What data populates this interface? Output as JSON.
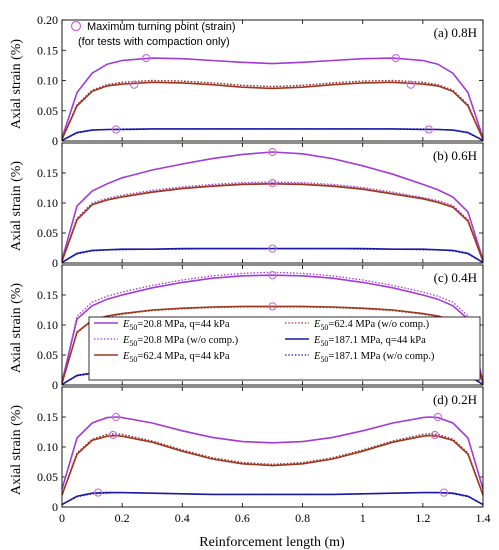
{
  "chart_data": {
    "type": "line",
    "xlabel": "Reinforcement length (m)",
    "ylabel": "Axial strain (%)",
    "xlim": [
      0,
      1.4
    ],
    "xticks": [
      "0",
      "0.2",
      "0.4",
      "0.6",
      "0.8",
      "1",
      "1.2",
      "1.4"
    ],
    "marker_note": [
      "Maximum turning point (strain)",
      "(for tests with compaction only)"
    ],
    "legend": [
      {
        "label": "E50=20.8 MPa, q=44 kPa",
        "sub": "50",
        "color": "#a23ad6",
        "dash": false
      },
      {
        "label": "E50=20.8 MPa (w/o comp.)",
        "sub": "50",
        "color": "#a23ad6",
        "dash": true
      },
      {
        "label": "E50=62.4 MPa, q=44 kPa",
        "sub": "50",
        "color": "#9e3722",
        "dash": false
      },
      {
        "label": "E50=62.4 MPa (w/o comp.)",
        "sub": "50",
        "color": "#9e3722",
        "dash": true
      },
      {
        "label": "E50=187.1 MPa, q=44 kPa",
        "sub": "50",
        "color": "#1a1aa6",
        "dash": false
      },
      {
        "label": "E50=187.1 MPa (w/o comp.)",
        "sub": "50",
        "color": "#1a1aa6",
        "dash": true
      }
    ],
    "panels": [
      {
        "label": "(a) 0.8H",
        "ylim": [
          0,
          0.2
        ],
        "yticks": [
          "0",
          "0.05",
          "0.10",
          "0.15",
          "0.20"
        ],
        "x": [
          0,
          0.05,
          0.1,
          0.15,
          0.2,
          0.3,
          0.4,
          0.5,
          0.6,
          0.7,
          0.8,
          0.9,
          1.0,
          1.1,
          1.2,
          1.25,
          1.3,
          1.35,
          1.4
        ],
        "series": [
          {
            "values": [
              0.005,
              0.08,
              0.112,
              0.127,
              0.133,
              0.137,
              0.136,
              0.133,
              0.13,
              0.128,
              0.13,
              0.133,
              0.136,
              0.137,
              0.133,
              0.127,
              0.112,
              0.08,
              0.005
            ]
          },
          {
            "values": [
              0.003,
              0.06,
              0.084,
              0.093,
              0.097,
              0.1,
              0.099,
              0.096,
              0.092,
              0.09,
              0.092,
              0.096,
              0.099,
              0.1,
              0.097,
              0.093,
              0.084,
              0.06,
              0.003
            ]
          },
          {
            "values": [
              0.003,
              0.058,
              0.082,
              0.091,
              0.094,
              0.097,
              0.096,
              0.093,
              0.089,
              0.087,
              0.089,
              0.093,
              0.096,
              0.097,
              0.094,
              0.091,
              0.082,
              0.058,
              0.003
            ]
          },
          {
            "values": [
              0.003,
              0.06,
              0.084,
              0.093,
              0.097,
              0.1,
              0.099,
              0.096,
              0.092,
              0.09,
              0.092,
              0.096,
              0.099,
              0.1,
              0.097,
              0.093,
              0.084,
              0.06,
              0.003
            ]
          },
          {
            "values": [
              0.001,
              0.014,
              0.018,
              0.019,
              0.019,
              0.02,
              0.02,
              0.02,
              0.02,
              0.02,
              0.02,
              0.02,
              0.02,
              0.02,
              0.019,
              0.019,
              0.018,
              0.014,
              0.001
            ]
          },
          {
            "values": [
              0.001,
              0.013,
              0.018,
              0.019,
              0.02,
              0.02,
              0.02,
              0.02,
              0.02,
              0.02,
              0.02,
              0.02,
              0.02,
              0.02,
              0.02,
              0.019,
              0.018,
              0.013,
              0.001
            ]
          }
        ],
        "markers": [
          {
            "x": 0.28,
            "y": 0.137
          },
          {
            "x": 1.11,
            "y": 0.137
          },
          {
            "x": 0.24,
            "y": 0.093
          },
          {
            "x": 1.16,
            "y": 0.093
          },
          {
            "x": 0.18,
            "y": 0.019
          },
          {
            "x": 1.22,
            "y": 0.019
          }
        ]
      },
      {
        "label": "(b) 0.6H",
        "ylim": [
          0,
          0.2
        ],
        "yticks": [
          "0",
          "0.05",
          "0.10",
          "0.15"
        ],
        "x": [
          0,
          0.05,
          0.1,
          0.15,
          0.2,
          0.3,
          0.4,
          0.5,
          0.6,
          0.7,
          0.8,
          0.9,
          1.0,
          1.1,
          1.2,
          1.25,
          1.3,
          1.35,
          1.4
        ],
        "series": [
          {
            "values": [
              0.005,
              0.095,
              0.12,
              0.132,
              0.142,
              0.155,
              0.165,
              0.174,
              0.181,
              0.185,
              0.182,
              0.174,
              0.162,
              0.148,
              0.131,
              0.122,
              0.11,
              0.085,
              0.005
            ]
          },
          {
            "values": [
              0.003,
              0.075,
              0.1,
              0.108,
              0.113,
              0.121,
              0.127,
              0.131,
              0.134,
              0.135,
              0.134,
              0.131,
              0.126,
              0.118,
              0.109,
              0.104,
              0.096,
              0.072,
              0.003
            ]
          },
          {
            "values": [
              0.003,
              0.072,
              0.097,
              0.105,
              0.11,
              0.118,
              0.124,
              0.128,
              0.131,
              0.132,
              0.131,
              0.128,
              0.123,
              0.115,
              0.107,
              0.101,
              0.093,
              0.07,
              0.003
            ]
          },
          {
            "values": [
              0.003,
              0.073,
              0.098,
              0.106,
              0.111,
              0.119,
              0.125,
              0.129,
              0.132,
              0.133,
              0.132,
              0.129,
              0.124,
              0.116,
              0.108,
              0.102,
              0.094,
              0.07,
              0.003
            ]
          },
          {
            "values": [
              0.001,
              0.016,
              0.021,
              0.022,
              0.023,
              0.023,
              0.024,
              0.024,
              0.024,
              0.024,
              0.024,
              0.024,
              0.024,
              0.023,
              0.023,
              0.022,
              0.021,
              0.016,
              0.001
            ]
          },
          {
            "values": [
              0.001,
              0.015,
              0.02,
              0.022,
              0.022,
              0.023,
              0.023,
              0.024,
              0.024,
              0.024,
              0.024,
              0.024,
              0.023,
              0.023,
              0.022,
              0.022,
              0.02,
              0.015,
              0.001
            ]
          }
        ],
        "markers": [
          {
            "x": 0.7,
            "y": 0.185
          },
          {
            "x": 0.7,
            "y": 0.133
          },
          {
            "x": 0.7,
            "y": 0.024
          }
        ]
      },
      {
        "label": "(c) 0.4H",
        "ylim": [
          0,
          0.2
        ],
        "yticks": [
          "0",
          "0.05",
          "0.10",
          "0.15"
        ],
        "x": [
          0,
          0.05,
          0.1,
          0.15,
          0.2,
          0.3,
          0.4,
          0.5,
          0.6,
          0.7,
          0.8,
          0.9,
          1.0,
          1.1,
          1.2,
          1.25,
          1.3,
          1.35,
          1.4
        ],
        "series": [
          {
            "values": [
              0.005,
              0.11,
              0.132,
              0.143,
              0.15,
              0.162,
              0.171,
              0.178,
              0.182,
              0.183,
              0.182,
              0.178,
              0.171,
              0.162,
              0.15,
              0.143,
              0.132,
              0.11,
              0.005
            ]
          },
          {
            "values": [
              0.003,
              0.115,
              0.138,
              0.148,
              0.155,
              0.166,
              0.175,
              0.182,
              0.186,
              0.188,
              0.186,
              0.182,
              0.175,
              0.166,
              0.155,
              0.148,
              0.138,
              0.115,
              0.003
            ]
          },
          {
            "values": [
              0.003,
              0.088,
              0.108,
              0.115,
              0.119,
              0.125,
              0.128,
              0.13,
              0.131,
              0.131,
              0.131,
              0.13,
              0.128,
              0.125,
              0.119,
              0.115,
              0.108,
              0.088,
              0.003
            ]
          },
          {
            "values": [
              0.003,
              0.087,
              0.107,
              0.114,
              0.118,
              0.124,
              0.127,
              0.129,
              0.13,
              0.13,
              0.13,
              0.129,
              0.127,
              0.124,
              0.118,
              0.114,
              0.107,
              0.087,
              0.003
            ]
          },
          {
            "values": [
              0.001,
              0.016,
              0.02,
              0.021,
              0.022,
              0.022,
              0.022,
              0.022,
              0.022,
              0.022,
              0.022,
              0.022,
              0.022,
              0.022,
              0.022,
              0.021,
              0.02,
              0.016,
              0.001
            ]
          },
          {
            "values": [
              0.001,
              0.015,
              0.019,
              0.021,
              0.021,
              0.022,
              0.022,
              0.022,
              0.022,
              0.022,
              0.022,
              0.022,
              0.022,
              0.022,
              0.021,
              0.021,
              0.019,
              0.015,
              0.001
            ]
          }
        ],
        "markers": [
          {
            "x": 0.7,
            "y": 0.183
          },
          {
            "x": 0.7,
            "y": 0.131
          },
          {
            "x": 0.7,
            "y": 0.022
          }
        ]
      },
      {
        "label": "(d) 0.2H",
        "ylim": [
          0,
          0.2
        ],
        "yticks": [
          "0",
          "0.05",
          "0.10",
          "0.15"
        ],
        "x": [
          0,
          0.05,
          0.1,
          0.15,
          0.18,
          0.2,
          0.3,
          0.4,
          0.5,
          0.6,
          0.7,
          0.8,
          0.9,
          1.0,
          1.1,
          1.2,
          1.22,
          1.25,
          1.3,
          1.35,
          1.4
        ],
        "series": [
          {
            "values": [
              0.03,
              0.115,
              0.14,
              0.149,
              0.15,
              0.149,
              0.14,
              0.127,
              0.116,
              0.109,
              0.107,
              0.109,
              0.116,
              0.127,
              0.14,
              0.149,
              0.15,
              0.149,
              0.14,
              0.115,
              0.03
            ]
          },
          {
            "values": [
              0.02,
              0.09,
              0.113,
              0.121,
              0.122,
              0.121,
              0.11,
              0.095,
              0.082,
              0.074,
              0.071,
              0.074,
              0.082,
              0.095,
              0.11,
              0.121,
              0.122,
              0.121,
              0.113,
              0.09,
              0.02
            ]
          },
          {
            "values": [
              0.02,
              0.088,
              0.111,
              0.118,
              0.119,
              0.118,
              0.108,
              0.093,
              0.08,
              0.072,
              0.069,
              0.072,
              0.08,
              0.093,
              0.108,
              0.118,
              0.119,
              0.118,
              0.111,
              0.088,
              0.02
            ]
          },
          {
            "values": [
              0.02,
              0.09,
              0.113,
              0.121,
              0.122,
              0.121,
              0.11,
              0.095,
              0.082,
              0.074,
              0.071,
              0.074,
              0.082,
              0.095,
              0.11,
              0.121,
              0.122,
              0.121,
              0.113,
              0.09,
              0.02
            ]
          },
          {
            "values": [
              0.004,
              0.018,
              0.023,
              0.024,
              0.024,
              0.024,
              0.023,
              0.022,
              0.021,
              0.021,
              0.021,
              0.021,
              0.021,
              0.022,
              0.023,
              0.024,
              0.024,
              0.024,
              0.023,
              0.018,
              0.004
            ]
          },
          {
            "values": [
              0.004,
              0.017,
              0.022,
              0.023,
              0.024,
              0.024,
              0.023,
              0.022,
              0.021,
              0.021,
              0.021,
              0.021,
              0.021,
              0.022,
              0.023,
              0.024,
              0.024,
              0.024,
              0.022,
              0.017,
              0.004
            ]
          }
        ],
        "markers": [
          {
            "x": 0.18,
            "y": 0.15
          },
          {
            "x": 1.25,
            "y": 0.15
          },
          {
            "x": 0.17,
            "y": 0.12
          },
          {
            "x": 1.24,
            "y": 0.12
          },
          {
            "x": 0.12,
            "y": 0.024
          },
          {
            "x": 1.27,
            "y": 0.024
          }
        ]
      }
    ]
  }
}
